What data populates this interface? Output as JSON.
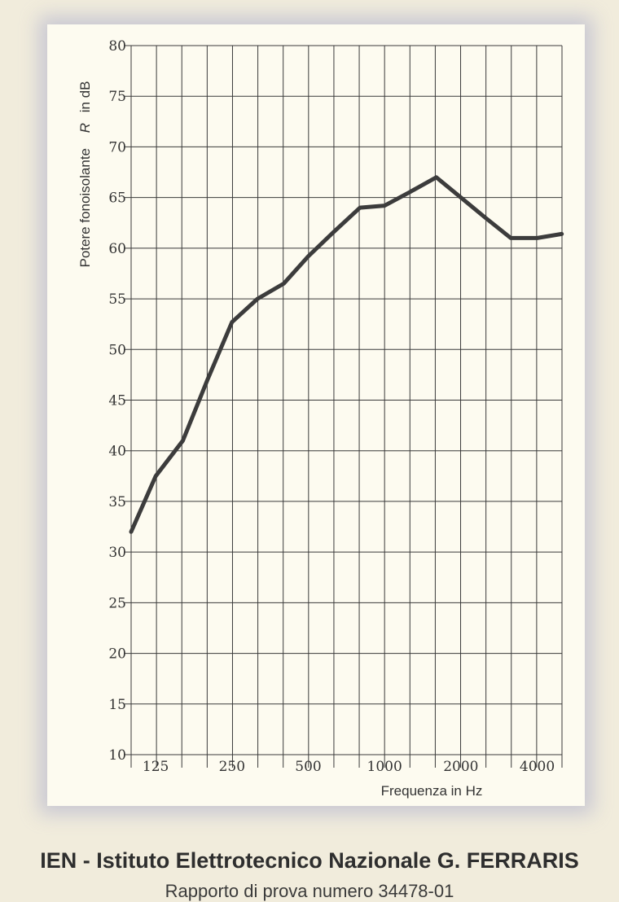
{
  "chart_data": {
    "type": "line",
    "xlabel": "Frequenza  in Hz",
    "ylabel_main": "Potere fonoisolante",
    "ylabel_symbol": "R",
    "ylabel_unit": "in dB",
    "ylim": [
      10,
      80
    ],
    "yticks": [
      10,
      15,
      20,
      25,
      30,
      35,
      40,
      45,
      50,
      55,
      60,
      65,
      70,
      75,
      80
    ],
    "x_scale": "log (third-octave bands)",
    "xtick_labels": [
      "125",
      "250",
      "500",
      "1000",
      "2000",
      "4000"
    ],
    "grid": true,
    "line_color": "#3c3c3c",
    "series": [
      {
        "x": [
          100,
          125,
          160,
          200,
          250,
          315,
          400,
          500,
          630,
          800,
          1000,
          1250,
          1600,
          2000,
          2500,
          3150,
          4000,
          5000
        ],
        "values": [
          32,
          37.5,
          41,
          47,
          52.7,
          55,
          56.5,
          59.2,
          61.6,
          64,
          64.2,
          65.5,
          67,
          65,
          63,
          61,
          61,
          61.4
        ]
      }
    ]
  },
  "caption": {
    "title": "IEN - Istituto Elettrotecnico Nazionale G. FERRARIS",
    "subtitle": "Rapporto di prova numero 34478-01"
  }
}
